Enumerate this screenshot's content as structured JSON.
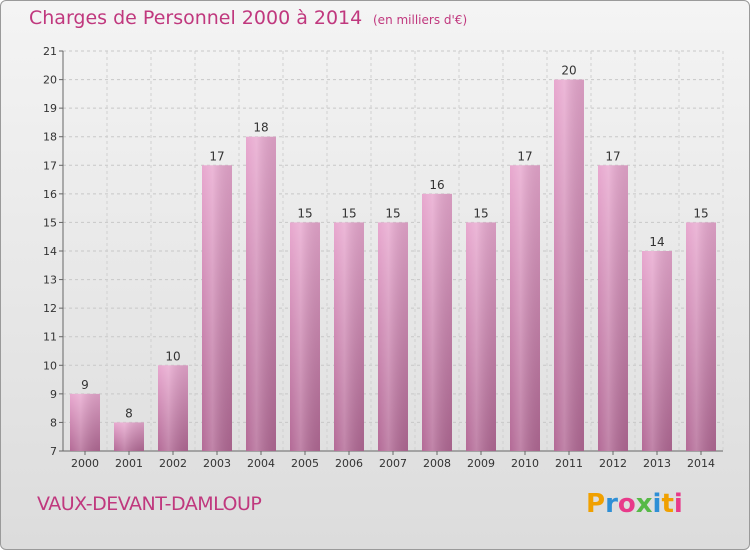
{
  "header": {
    "title": "Charges de Personnel 2000 à 2014",
    "subtitle": "(en milliers d'€)"
  },
  "footer": {
    "commune": "VAUX-DEVANT-DAMLOUP",
    "brand": "Proxiti",
    "brand_colors": [
      "#f0a000",
      "#2e8fd6",
      "#e83a8a",
      "#57b947",
      "#2e8fd6",
      "#f0a000",
      "#e83a8a"
    ]
  },
  "colors": {
    "bar_top": "#e8a8cf",
    "bar_bottom": "#b36a96",
    "text": "#c0387e"
  },
  "chart_data": {
    "type": "bar",
    "categories": [
      "2000",
      "2001",
      "2002",
      "2003",
      "2004",
      "2005",
      "2006",
      "2007",
      "2008",
      "2009",
      "2010",
      "2011",
      "2012",
      "2013",
      "2014"
    ],
    "values": [
      9,
      8,
      10,
      17,
      18,
      15,
      15,
      15,
      16,
      15,
      17,
      20,
      17,
      14,
      15
    ],
    "title": "Charges de Personnel 2000 à 2014",
    "subtitle": "(en milliers d'€)",
    "ylim": [
      7,
      21
    ],
    "yticks": [
      7,
      8,
      9,
      10,
      11,
      12,
      13,
      14,
      15,
      16,
      17,
      18,
      19,
      20,
      21
    ],
    "grid": true
  }
}
